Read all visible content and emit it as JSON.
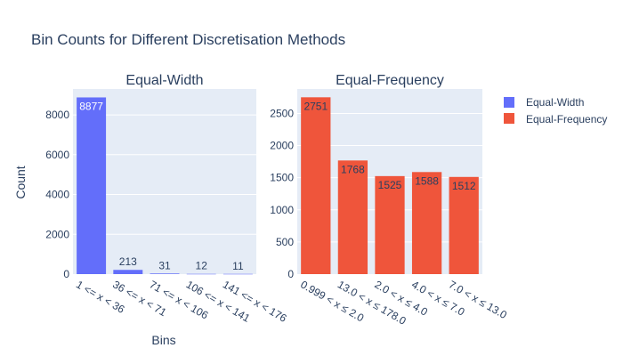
{
  "title": "Bin Counts for Different Discretisation Methods",
  "y_axis_label": "Count",
  "x_axis_label": "Bins",
  "colors": {
    "equal_width": "#636efa",
    "equal_frequency": "#ef553b",
    "plot_bg": "#e5ecf6",
    "text": "#2a3f5f"
  },
  "legend": [
    "Equal-Width",
    "Equal-Frequency"
  ],
  "chart_data": [
    {
      "type": "bar",
      "title": "Equal-Width",
      "categories": [
        "1 <= x < 36",
        "36 <= x < 71",
        "71 <= x < 106",
        "106 <= x < 141",
        "141 <= x < 176"
      ],
      "series": [
        {
          "name": "Equal-Width",
          "values": [
            8877,
            213,
            31,
            12,
            11
          ]
        }
      ],
      "ylim": [
        0,
        9300
      ],
      "yticks": [
        0,
        2000,
        4000,
        6000,
        8000
      ],
      "xlabel": "Bins",
      "ylabel": "Count",
      "grid": true,
      "data_labels": [
        "8877",
        "213",
        "31",
        "12",
        "11"
      ]
    },
    {
      "type": "bar",
      "title": "Equal-Frequency",
      "categories": [
        "0.999 < x ≤ 2.0",
        "13.0 < x ≤ 178.0",
        "2.0 < x ≤ 4.0",
        "4.0 < x ≤ 7.0",
        "7.0 < x ≤ 13.0"
      ],
      "series": [
        {
          "name": "Equal-Frequency",
          "values": [
            2751,
            1768,
            1525,
            1588,
            1512
          ]
        }
      ],
      "ylim": [
        0,
        2880
      ],
      "yticks": [
        0,
        500,
        1000,
        1500,
        2000,
        2500
      ],
      "xlabel": "",
      "ylabel": "",
      "grid": true,
      "data_labels": [
        "2751",
        "1768",
        "1525",
        "1588",
        "1512"
      ]
    }
  ]
}
